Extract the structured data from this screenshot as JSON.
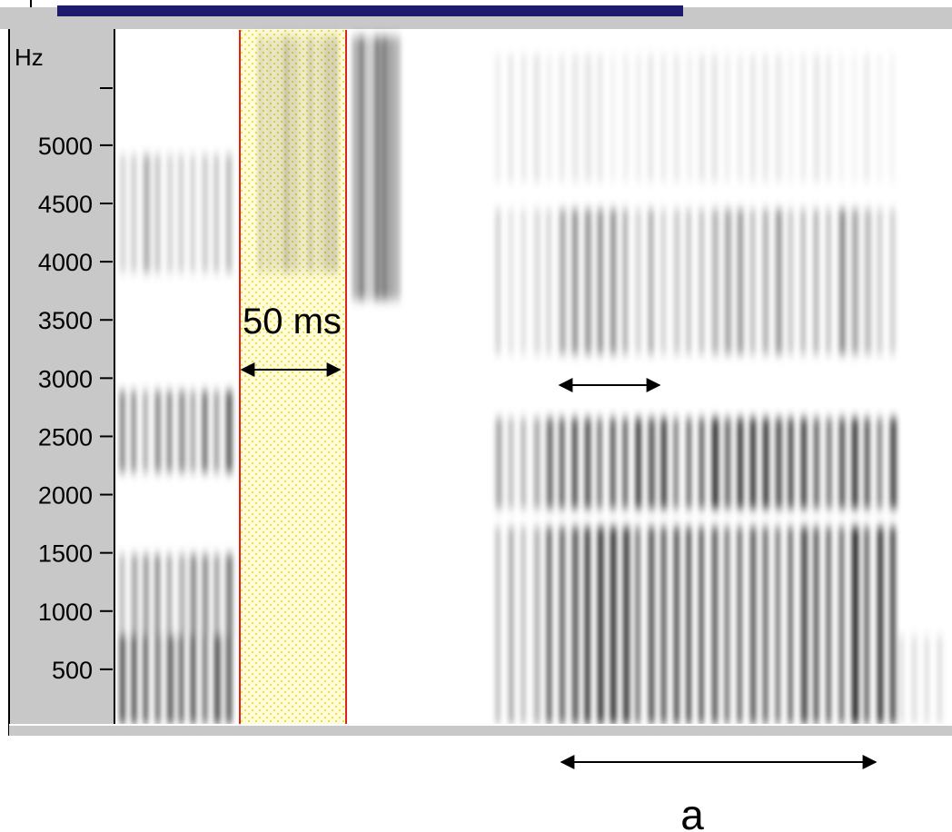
{
  "axis": {
    "unit": "Hz",
    "ticks": [
      500,
      1000,
      1500,
      2000,
      2500,
      3000,
      3500,
      4000,
      4500,
      5000
    ]
  },
  "annotations": {
    "selection": "50 ms",
    "segment": "a"
  }
}
